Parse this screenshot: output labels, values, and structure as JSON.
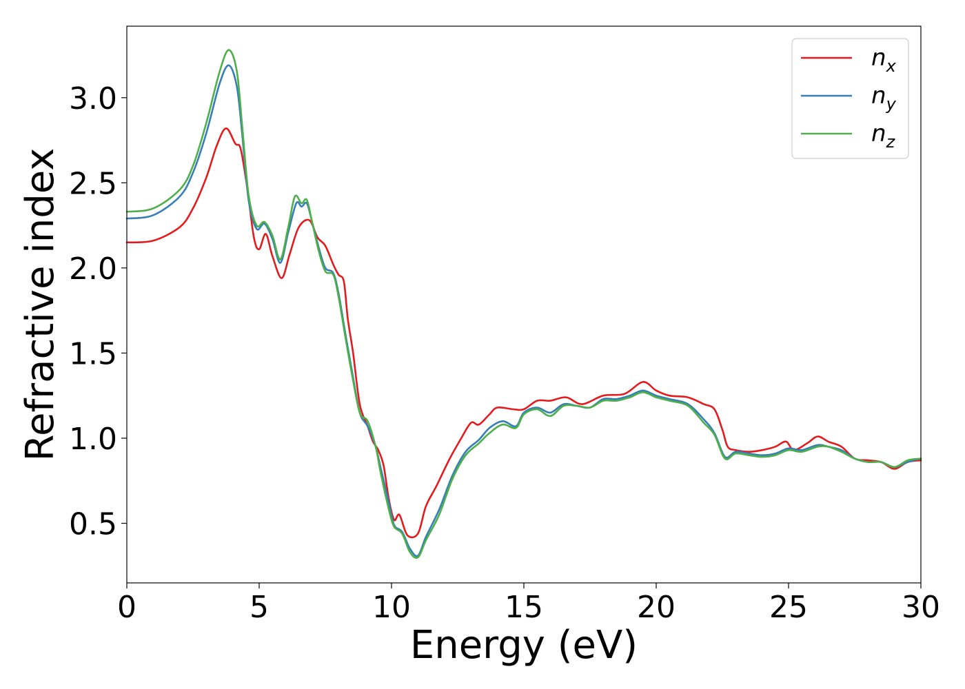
{
  "chart_data": {
    "type": "line",
    "title": "",
    "xlabel": "Energy (eV)",
    "ylabel": "Refractive index",
    "xlim": [
      0,
      30
    ],
    "ylim": [
      0.15,
      3.42
    ],
    "grid": false,
    "legend_position": "top-right",
    "x_ticks": [
      "0",
      "5",
      "10",
      "15",
      "20",
      "25",
      "30"
    ],
    "y_ticks": [
      "0.5",
      "1.0",
      "1.5",
      "2.0",
      "2.5",
      "3.0"
    ],
    "series": [
      {
        "name": "n_x",
        "legend_base": "n",
        "legend_sub": "x",
        "color": "#e41a1c",
        "points": [
          [
            0,
            2.15
          ],
          [
            1,
            2.16
          ],
          [
            2,
            2.24
          ],
          [
            2.5,
            2.35
          ],
          [
            3,
            2.53
          ],
          [
            3.4,
            2.72
          ],
          [
            3.75,
            2.82
          ],
          [
            4.1,
            2.73
          ],
          [
            4.3,
            2.7
          ],
          [
            4.55,
            2.47
          ],
          [
            4.8,
            2.18
          ],
          [
            5.0,
            2.11
          ],
          [
            5.25,
            2.2
          ],
          [
            5.5,
            2.07
          ],
          [
            5.85,
            1.94
          ],
          [
            6.15,
            2.08
          ],
          [
            6.5,
            2.24
          ],
          [
            6.9,
            2.28
          ],
          [
            7.2,
            2.18
          ],
          [
            7.5,
            2.13
          ],
          [
            7.8,
            2.02
          ],
          [
            8.0,
            1.96
          ],
          [
            8.2,
            1.92
          ],
          [
            8.35,
            1.7
          ],
          [
            8.55,
            1.5
          ],
          [
            8.8,
            1.2
          ],
          [
            9.1,
            1.07
          ],
          [
            9.3,
            0.98
          ],
          [
            9.5,
            0.93
          ],
          [
            9.7,
            0.84
          ],
          [
            9.9,
            0.64
          ],
          [
            10.1,
            0.52
          ],
          [
            10.3,
            0.55
          ],
          [
            10.6,
            0.43
          ],
          [
            11.0,
            0.44
          ],
          [
            11.3,
            0.6
          ],
          [
            11.7,
            0.72
          ],
          [
            12.2,
            0.88
          ],
          [
            12.6,
            0.99
          ],
          [
            13.0,
            1.09
          ],
          [
            13.3,
            1.08
          ],
          [
            13.7,
            1.14
          ],
          [
            14.0,
            1.18
          ],
          [
            14.6,
            1.17
          ],
          [
            15.0,
            1.17
          ],
          [
            15.5,
            1.22
          ],
          [
            16.0,
            1.22
          ],
          [
            16.6,
            1.24
          ],
          [
            17.2,
            1.2
          ],
          [
            18.0,
            1.25
          ],
          [
            18.8,
            1.26
          ],
          [
            19.5,
            1.33
          ],
          [
            20.0,
            1.28
          ],
          [
            20.5,
            1.25
          ],
          [
            21.2,
            1.24
          ],
          [
            21.8,
            1.2
          ],
          [
            22.2,
            1.17
          ],
          [
            22.5,
            1.05
          ],
          [
            22.7,
            0.95
          ],
          [
            23.0,
            0.93
          ],
          [
            23.5,
            0.92
          ],
          [
            24.0,
            0.93
          ],
          [
            24.5,
            0.95
          ],
          [
            24.9,
            0.98
          ],
          [
            25.2,
            0.93
          ],
          [
            25.7,
            0.97
          ],
          [
            26.1,
            1.01
          ],
          [
            26.5,
            0.98
          ],
          [
            27.0,
            0.95
          ],
          [
            27.5,
            0.88
          ],
          [
            28.0,
            0.87
          ],
          [
            28.5,
            0.86
          ],
          [
            29.0,
            0.82
          ],
          [
            29.5,
            0.86
          ],
          [
            30,
            0.87
          ]
        ]
      },
      {
        "name": "n_y",
        "legend_base": "n",
        "legend_sub": "y",
        "color": "#377eb8",
        "points": [
          [
            0,
            2.29
          ],
          [
            1,
            2.31
          ],
          [
            2,
            2.42
          ],
          [
            2.5,
            2.56
          ],
          [
            3,
            2.79
          ],
          [
            3.5,
            3.08
          ],
          [
            3.85,
            3.19
          ],
          [
            4.15,
            3.07
          ],
          [
            4.35,
            2.8
          ],
          [
            4.6,
            2.4
          ],
          [
            4.9,
            2.23
          ],
          [
            5.2,
            2.26
          ],
          [
            5.5,
            2.17
          ],
          [
            5.8,
            2.03
          ],
          [
            6.1,
            2.21
          ],
          [
            6.4,
            2.38
          ],
          [
            6.6,
            2.36
          ],
          [
            6.8,
            2.38
          ],
          [
            7.0,
            2.27
          ],
          [
            7.25,
            2.12
          ],
          [
            7.5,
            2.0
          ],
          [
            7.8,
            1.97
          ],
          [
            8.0,
            1.85
          ],
          [
            8.25,
            1.62
          ],
          [
            8.5,
            1.4
          ],
          [
            8.8,
            1.15
          ],
          [
            9.1,
            1.07
          ],
          [
            9.4,
            0.95
          ],
          [
            9.6,
            0.82
          ],
          [
            9.9,
            0.62
          ],
          [
            10.1,
            0.49
          ],
          [
            10.4,
            0.45
          ],
          [
            10.7,
            0.35
          ],
          [
            11.0,
            0.31
          ],
          [
            11.3,
            0.42
          ],
          [
            11.8,
            0.58
          ],
          [
            12.3,
            0.78
          ],
          [
            12.8,
            0.92
          ],
          [
            13.3,
            0.99
          ],
          [
            13.7,
            1.06
          ],
          [
            14.2,
            1.1
          ],
          [
            14.7,
            1.07
          ],
          [
            15.0,
            1.15
          ],
          [
            15.5,
            1.18
          ],
          [
            16.0,
            1.15
          ],
          [
            16.5,
            1.2
          ],
          [
            17.0,
            1.19
          ],
          [
            17.5,
            1.18
          ],
          [
            18.0,
            1.23
          ],
          [
            18.5,
            1.23
          ],
          [
            19.0,
            1.25
          ],
          [
            19.5,
            1.28
          ],
          [
            20.0,
            1.25
          ],
          [
            20.5,
            1.23
          ],
          [
            21.2,
            1.2
          ],
          [
            21.8,
            1.11
          ],
          [
            22.2,
            1.03
          ],
          [
            22.6,
            0.89
          ],
          [
            23.0,
            0.92
          ],
          [
            23.5,
            0.91
          ],
          [
            24.0,
            0.9
          ],
          [
            24.5,
            0.91
          ],
          [
            25.0,
            0.94
          ],
          [
            25.5,
            0.93
          ],
          [
            26.1,
            0.96
          ],
          [
            26.5,
            0.95
          ],
          [
            27.0,
            0.93
          ],
          [
            27.5,
            0.88
          ],
          [
            28.0,
            0.86
          ],
          [
            28.5,
            0.86
          ],
          [
            29.0,
            0.83
          ],
          [
            29.5,
            0.86
          ],
          [
            30,
            0.88
          ]
        ]
      },
      {
        "name": "n_z",
        "legend_base": "n",
        "legend_sub": "z",
        "color": "#4daf4a",
        "points": [
          [
            0,
            2.33
          ],
          [
            1,
            2.35
          ],
          [
            2,
            2.46
          ],
          [
            2.5,
            2.6
          ],
          [
            3,
            2.85
          ],
          [
            3.5,
            3.15
          ],
          [
            3.85,
            3.28
          ],
          [
            4.15,
            3.16
          ],
          [
            4.35,
            2.85
          ],
          [
            4.6,
            2.43
          ],
          [
            4.9,
            2.25
          ],
          [
            5.2,
            2.27
          ],
          [
            5.5,
            2.19
          ],
          [
            5.8,
            2.05
          ],
          [
            6.1,
            2.24
          ],
          [
            6.35,
            2.42
          ],
          [
            6.6,
            2.38
          ],
          [
            6.8,
            2.4
          ],
          [
            7.0,
            2.27
          ],
          [
            7.25,
            2.1
          ],
          [
            7.5,
            1.98
          ],
          [
            7.8,
            1.96
          ],
          [
            8.0,
            1.83
          ],
          [
            8.25,
            1.6
          ],
          [
            8.5,
            1.38
          ],
          [
            8.8,
            1.15
          ],
          [
            9.1,
            1.1
          ],
          [
            9.4,
            0.95
          ],
          [
            9.6,
            0.79
          ],
          [
            9.9,
            0.58
          ],
          [
            10.1,
            0.48
          ],
          [
            10.4,
            0.44
          ],
          [
            10.7,
            0.33
          ],
          [
            11.0,
            0.3
          ],
          [
            11.3,
            0.4
          ],
          [
            11.8,
            0.55
          ],
          [
            12.3,
            0.76
          ],
          [
            12.8,
            0.9
          ],
          [
            13.3,
            0.97
          ],
          [
            13.7,
            1.03
          ],
          [
            14.2,
            1.08
          ],
          [
            14.7,
            1.06
          ],
          [
            15.0,
            1.14
          ],
          [
            15.5,
            1.17
          ],
          [
            16.0,
            1.13
          ],
          [
            16.5,
            1.19
          ],
          [
            17.0,
            1.19
          ],
          [
            17.5,
            1.18
          ],
          [
            18.0,
            1.22
          ],
          [
            18.5,
            1.22
          ],
          [
            19.0,
            1.24
          ],
          [
            19.5,
            1.27
          ],
          [
            20.0,
            1.24
          ],
          [
            20.5,
            1.22
          ],
          [
            21.2,
            1.19
          ],
          [
            21.8,
            1.09
          ],
          [
            22.2,
            1.02
          ],
          [
            22.6,
            0.88
          ],
          [
            23.0,
            0.91
          ],
          [
            23.5,
            0.9
          ],
          [
            24.0,
            0.89
          ],
          [
            24.5,
            0.9
          ],
          [
            25.0,
            0.93
          ],
          [
            25.5,
            0.92
          ],
          [
            26.1,
            0.95
          ],
          [
            26.5,
            0.95
          ],
          [
            27.0,
            0.92
          ],
          [
            27.5,
            0.88
          ],
          [
            28.0,
            0.86
          ],
          [
            28.5,
            0.86
          ],
          [
            29.0,
            0.83
          ],
          [
            29.5,
            0.87
          ],
          [
            30,
            0.88
          ]
        ]
      }
    ]
  }
}
